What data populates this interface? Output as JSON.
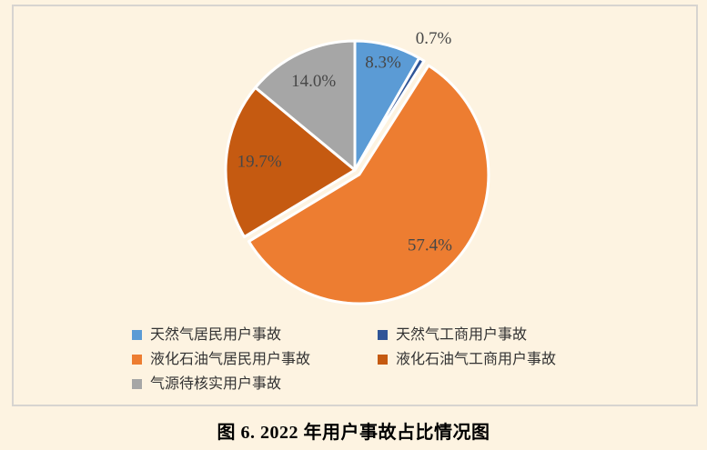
{
  "caption": "图 6. 2022 年用户事故占比情况图",
  "chart_data": {
    "type": "pie",
    "title": "图 6. 2022 年用户事故占比情况图",
    "legend_position": "bottom",
    "start_angle_deg": 0,
    "direction": "clockwise",
    "colors": {
      "background": "#FDF3E1",
      "frame_border": "#D7D4D0",
      "slice_separator": "#FFFFFF",
      "data_label_text": "#474747"
    },
    "slices": [
      {
        "label": "天然气居民用户事故",
        "value": 8.3,
        "display": "8.3%",
        "color": "#5B9BD5",
        "exploded": false,
        "label_outside": false,
        "label_radius": 0.85
      },
      {
        "label": "天然气工商用户事故",
        "value": 0.7,
        "display": "0.7%",
        "color": "#2F5597",
        "exploded": false,
        "label_outside": true,
        "label_radius": 1.18
      },
      {
        "label": "液化石油气居民用户事故",
        "value": 57.4,
        "display": "57.4%",
        "color": "#ED7D31",
        "exploded": true,
        "label_outside": false,
        "label_radius": 0.78
      },
      {
        "label": "液化石油气工商用户事故",
        "value": 19.7,
        "display": "19.7%",
        "color": "#C55A11",
        "exploded": false,
        "label_outside": false,
        "label_radius": 0.74
      },
      {
        "label": "气源待核实用户事故",
        "value": 14.0,
        "display": "14.0%",
        "color": "#A6A6A6",
        "exploded": false,
        "label_outside": false,
        "label_radius": 0.75
      }
    ]
  }
}
